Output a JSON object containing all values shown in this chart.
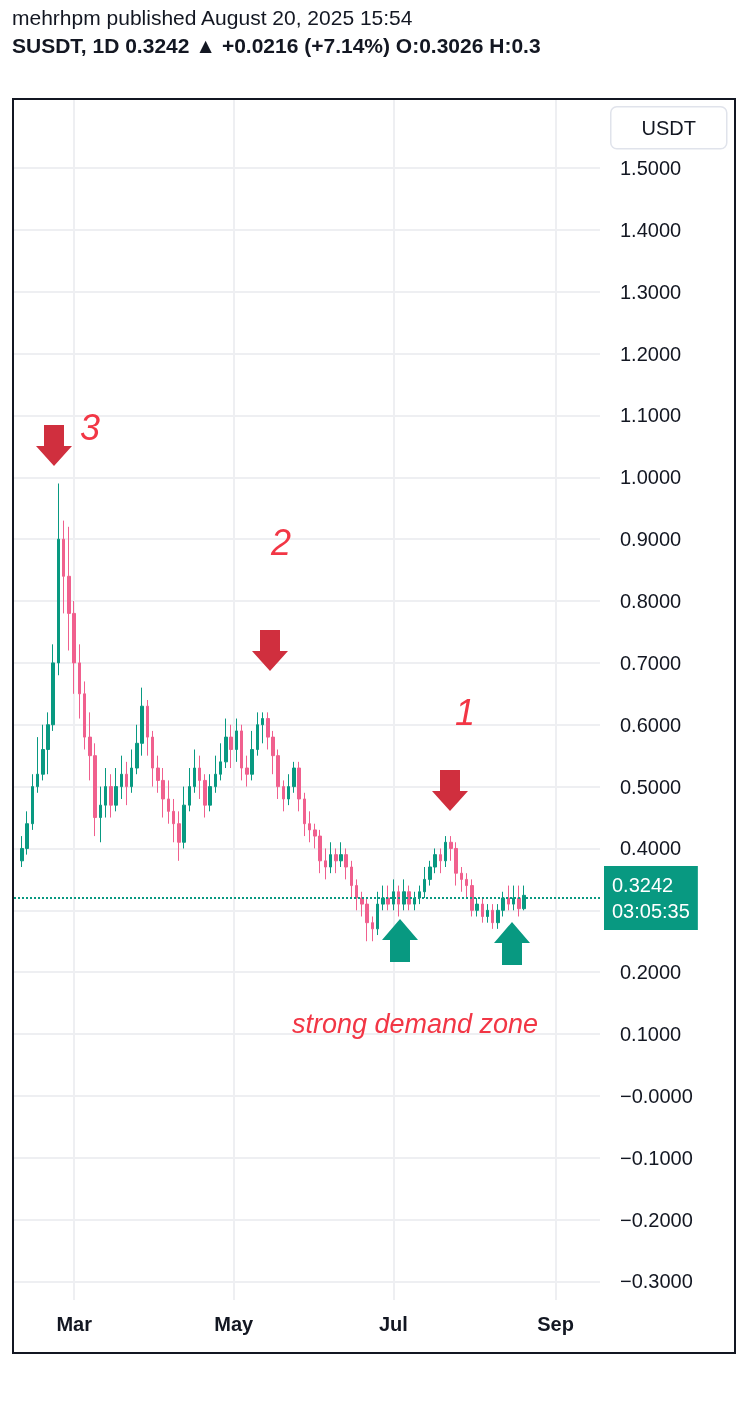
{
  "chart_data": {
    "type": "candlestick",
    "title": "mehrhpm published August 20, 2025 15:54",
    "subtitle": "SUSDT, 1D 0.3242 ▲ +0.0216 (+7.14%) O:0.3026 H:0.3",
    "ylabel": "USDT",
    "x": [
      "2025-02-09",
      "2025-02-11",
      "2025-02-13",
      "2025-02-15",
      "2025-02-17",
      "2025-02-19",
      "2025-02-21",
      "2025-02-23",
      "2025-02-25",
      "2025-02-27",
      "2025-03-01",
      "2025-03-03",
      "2025-03-05",
      "2025-03-07",
      "2025-03-09",
      "2025-03-11",
      "2025-03-13",
      "2025-03-15",
      "2025-03-17",
      "2025-03-19",
      "2025-03-21",
      "2025-03-23",
      "2025-03-25",
      "2025-03-27",
      "2025-03-29",
      "2025-03-31",
      "2025-04-02",
      "2025-04-04",
      "2025-04-06",
      "2025-04-08",
      "2025-04-10",
      "2025-04-12",
      "2025-04-14",
      "2025-04-16",
      "2025-04-18",
      "2025-04-20",
      "2025-04-22",
      "2025-04-24",
      "2025-04-26",
      "2025-04-28",
      "2025-04-30",
      "2025-05-02",
      "2025-05-04",
      "2025-05-06",
      "2025-05-08",
      "2025-05-10",
      "2025-05-12",
      "2025-05-14",
      "2025-05-16",
      "2025-05-18",
      "2025-05-20",
      "2025-05-22",
      "2025-05-24",
      "2025-05-26",
      "2025-05-28",
      "2025-05-30",
      "2025-06-01",
      "2025-06-03",
      "2025-06-05",
      "2025-06-07",
      "2025-06-09",
      "2025-06-11",
      "2025-06-13",
      "2025-06-15",
      "2025-06-17",
      "2025-06-19",
      "2025-06-21",
      "2025-06-23",
      "2025-06-25",
      "2025-06-27",
      "2025-06-29",
      "2025-07-01",
      "2025-07-03",
      "2025-07-05",
      "2025-07-07",
      "2025-07-09",
      "2025-07-11",
      "2025-07-13",
      "2025-07-15",
      "2025-07-17",
      "2025-07-19",
      "2025-07-21",
      "2025-07-23",
      "2025-07-25",
      "2025-07-27",
      "2025-07-29",
      "2025-07-31",
      "2025-08-02",
      "2025-08-04",
      "2025-08-06",
      "2025-08-08",
      "2025-08-10",
      "2025-08-12",
      "2025-08-14",
      "2025-08-16",
      "2025-08-18",
      "2025-08-20"
    ],
    "ohlc": [
      [
        0.38,
        0.42,
        0.37,
        0.4
      ],
      [
        0.4,
        0.46,
        0.39,
        0.44
      ],
      [
        0.44,
        0.52,
        0.43,
        0.5
      ],
      [
        0.5,
        0.58,
        0.49,
        0.52
      ],
      [
        0.52,
        0.6,
        0.51,
        0.56
      ],
      [
        0.56,
        0.62,
        0.52,
        0.6
      ],
      [
        0.6,
        0.73,
        0.59,
        0.7
      ],
      [
        0.7,
        0.99,
        0.68,
        0.9
      ],
      [
        0.9,
        0.93,
        0.78,
        0.84
      ],
      [
        0.84,
        0.92,
        0.72,
        0.78
      ],
      [
        0.78,
        0.8,
        0.65,
        0.7
      ],
      [
        0.7,
        0.73,
        0.61,
        0.65
      ],
      [
        0.65,
        0.67,
        0.56,
        0.58
      ],
      [
        0.58,
        0.62,
        0.51,
        0.55
      ],
      [
        0.55,
        0.57,
        0.42,
        0.45
      ],
      [
        0.45,
        0.5,
        0.41,
        0.47
      ],
      [
        0.47,
        0.53,
        0.45,
        0.5
      ],
      [
        0.5,
        0.52,
        0.45,
        0.47
      ],
      [
        0.47,
        0.53,
        0.46,
        0.5
      ],
      [
        0.5,
        0.55,
        0.48,
        0.52
      ],
      [
        0.52,
        0.54,
        0.47,
        0.5
      ],
      [
        0.5,
        0.56,
        0.49,
        0.53
      ],
      [
        0.53,
        0.6,
        0.52,
        0.57
      ],
      [
        0.57,
        0.66,
        0.55,
        0.63
      ],
      [
        0.63,
        0.64,
        0.55,
        0.58
      ],
      [
        0.58,
        0.59,
        0.5,
        0.53
      ],
      [
        0.53,
        0.55,
        0.49,
        0.51
      ],
      [
        0.51,
        0.53,
        0.45,
        0.48
      ],
      [
        0.48,
        0.51,
        0.44,
        0.46
      ],
      [
        0.46,
        0.48,
        0.41,
        0.44
      ],
      [
        0.44,
        0.46,
        0.38,
        0.41
      ],
      [
        0.41,
        0.5,
        0.4,
        0.47
      ],
      [
        0.47,
        0.53,
        0.46,
        0.5
      ],
      [
        0.5,
        0.56,
        0.49,
        0.53
      ],
      [
        0.53,
        0.55,
        0.48,
        0.51
      ],
      [
        0.51,
        0.52,
        0.45,
        0.47
      ],
      [
        0.47,
        0.52,
        0.46,
        0.5
      ],
      [
        0.5,
        0.55,
        0.49,
        0.52
      ],
      [
        0.52,
        0.57,
        0.51,
        0.54
      ],
      [
        0.54,
        0.61,
        0.53,
        0.58
      ],
      [
        0.58,
        0.6,
        0.53,
        0.56
      ],
      [
        0.56,
        0.61,
        0.54,
        0.59
      ],
      [
        0.59,
        0.6,
        0.51,
        0.53
      ],
      [
        0.53,
        0.55,
        0.5,
        0.52
      ],
      [
        0.52,
        0.59,
        0.51,
        0.56
      ],
      [
        0.56,
        0.62,
        0.55,
        0.6
      ],
      [
        0.6,
        0.62,
        0.57,
        0.61
      ],
      [
        0.61,
        0.62,
        0.56,
        0.58
      ],
      [
        0.58,
        0.59,
        0.52,
        0.55
      ],
      [
        0.55,
        0.56,
        0.48,
        0.5
      ],
      [
        0.5,
        0.51,
        0.46,
        0.48
      ],
      [
        0.48,
        0.52,
        0.47,
        0.5
      ],
      [
        0.5,
        0.54,
        0.49,
        0.53
      ],
      [
        0.53,
        0.54,
        0.46,
        0.48
      ],
      [
        0.48,
        0.49,
        0.42,
        0.44
      ],
      [
        0.44,
        0.46,
        0.41,
        0.43
      ],
      [
        0.43,
        0.44,
        0.4,
        0.42
      ],
      [
        0.42,
        0.43,
        0.36,
        0.38
      ],
      [
        0.38,
        0.4,
        0.35,
        0.37
      ],
      [
        0.37,
        0.41,
        0.36,
        0.39
      ],
      [
        0.39,
        0.4,
        0.36,
        0.38
      ],
      [
        0.38,
        0.41,
        0.37,
        0.39
      ],
      [
        0.39,
        0.4,
        0.35,
        0.37
      ],
      [
        0.37,
        0.38,
        0.32,
        0.34
      ],
      [
        0.34,
        0.35,
        0.3,
        0.32
      ],
      [
        0.32,
        0.33,
        0.29,
        0.31
      ],
      [
        0.31,
        0.32,
        0.25,
        0.28
      ],
      [
        0.28,
        0.29,
        0.25,
        0.27
      ],
      [
        0.27,
        0.33,
        0.26,
        0.31
      ],
      [
        0.31,
        0.34,
        0.3,
        0.32
      ],
      [
        0.32,
        0.34,
        0.3,
        0.31
      ],
      [
        0.31,
        0.35,
        0.3,
        0.33
      ],
      [
        0.33,
        0.34,
        0.29,
        0.31
      ],
      [
        0.31,
        0.35,
        0.3,
        0.33
      ],
      [
        0.33,
        0.34,
        0.3,
        0.31
      ],
      [
        0.31,
        0.33,
        0.3,
        0.32
      ],
      [
        0.32,
        0.34,
        0.31,
        0.33
      ],
      [
        0.33,
        0.37,
        0.32,
        0.35
      ],
      [
        0.35,
        0.38,
        0.34,
        0.37
      ],
      [
        0.37,
        0.4,
        0.36,
        0.39
      ],
      [
        0.39,
        0.4,
        0.36,
        0.38
      ],
      [
        0.38,
        0.42,
        0.37,
        0.41
      ],
      [
        0.41,
        0.42,
        0.38,
        0.4
      ],
      [
        0.4,
        0.41,
        0.34,
        0.36
      ],
      [
        0.36,
        0.37,
        0.33,
        0.35
      ],
      [
        0.35,
        0.36,
        0.32,
        0.34
      ],
      [
        0.34,
        0.35,
        0.29,
        0.3
      ],
      [
        0.3,
        0.32,
        0.29,
        0.31
      ],
      [
        0.31,
        0.32,
        0.28,
        0.29
      ],
      [
        0.29,
        0.31,
        0.28,
        0.3
      ],
      [
        0.3,
        0.31,
        0.27,
        0.28
      ],
      [
        0.28,
        0.31,
        0.27,
        0.3
      ],
      [
        0.3,
        0.33,
        0.29,
        0.32
      ],
      [
        0.32,
        0.34,
        0.3,
        0.31
      ],
      [
        0.31,
        0.34,
        0.3,
        0.32
      ],
      [
        0.32,
        0.34,
        0.29,
        0.3026
      ],
      [
        0.3026,
        0.34,
        0.3,
        0.3242
      ]
    ],
    "colors": [
      "#089981",
      "#089981",
      "#089981",
      "#089981",
      "#089981",
      "#089981",
      "#089981",
      "#089981",
      "#f0608e",
      "#f0608e",
      "#f0608e",
      "#f0608e",
      "#f0608e",
      "#f0608e",
      "#f0608e",
      "#089981",
      "#089981",
      "#f0608e",
      "#089981",
      "#089981",
      "#f0608e",
      "#089981",
      "#089981",
      "#089981",
      "#f0608e",
      "#f0608e",
      "#f0608e",
      "#f0608e",
      "#f0608e",
      "#f0608e",
      "#f0608e",
      "#089981",
      "#089981",
      "#089981",
      "#f0608e",
      "#f0608e",
      "#089981",
      "#089981",
      "#089981",
      "#089981",
      "#f0608e",
      "#089981",
      "#f0608e",
      "#f0608e",
      "#089981",
      "#089981",
      "#089981",
      "#f0608e",
      "#f0608e",
      "#f0608e",
      "#f0608e",
      "#089981",
      "#089981",
      "#f0608e",
      "#f0608e",
      "#f0608e",
      "#f0608e",
      "#f0608e",
      "#f0608e",
      "#089981",
      "#f0608e",
      "#089981",
      "#f0608e",
      "#f0608e",
      "#f0608e",
      "#f0608e",
      "#f0608e",
      "#f0608e",
      "#089981",
      "#089981",
      "#f0608e",
      "#089981",
      "#f0608e",
      "#089981",
      "#f0608e",
      "#089981",
      "#089981",
      "#089981",
      "#089981",
      "#089981",
      "#f0608e",
      "#089981",
      "#f0608e",
      "#f0608e",
      "#f0608e",
      "#f0608e",
      "#f0608e",
      "#089981",
      "#f0608e",
      "#089981",
      "#f0608e",
      "#089981",
      "#089981",
      "#f0608e",
      "#089981",
      "#f0608e",
      "#089981"
    ],
    "xlim": [
      "2025-02-06",
      "2025-09-18"
    ],
    "xticks": [
      {
        "value": "2025-03-01",
        "label": "Mar"
      },
      {
        "value": "2025-05-01",
        "label": "May"
      },
      {
        "value": "2025-07-01",
        "label": "Jul"
      },
      {
        "value": "2025-09-01",
        "label": "Sep"
      }
    ],
    "ylim": [
      -0.33,
      1.61
    ],
    "yticks": [
      {
        "value": -0.3,
        "label": "−0.3000"
      },
      {
        "value": -0.2,
        "label": "−0.2000"
      },
      {
        "value": -0.1,
        "label": "−0.1000"
      },
      {
        "value": 0,
        "label": "−0.0000"
      },
      {
        "value": 0.1,
        "label": "0.1000"
      },
      {
        "value": 0.2,
        "label": "0.2000"
      },
      {
        "value": 0.3,
        "label": null
      },
      {
        "value": 0.4,
        "label": "0.4000"
      },
      {
        "value": 0.5,
        "label": "0.5000"
      },
      {
        "value": 0.6,
        "label": "0.6000"
      },
      {
        "value": 0.7,
        "label": "0.7000"
      },
      {
        "value": 0.8,
        "label": "0.8000"
      },
      {
        "value": 0.9,
        "label": "0.9000"
      },
      {
        "value": 1.0,
        "label": "1.0000"
      },
      {
        "value": 1.1,
        "label": "1.1000"
      },
      {
        "value": 1.2,
        "label": "1.2000"
      },
      {
        "value": 1.3,
        "label": "1.3000"
      },
      {
        "value": 1.4,
        "label": "1.4000"
      },
      {
        "value": 1.5,
        "label": "1.5000"
      }
    ],
    "grid": true,
    "ref_lines": [
      {
        "axis": "y",
        "value": 0.3242,
        "label": "0.3242\n03:05:35",
        "color": "#089981",
        "line_style": "dotted"
      }
    ],
    "annotations": [
      "3",
      "2",
      "1",
      "strong demand zone"
    ]
  }
}
